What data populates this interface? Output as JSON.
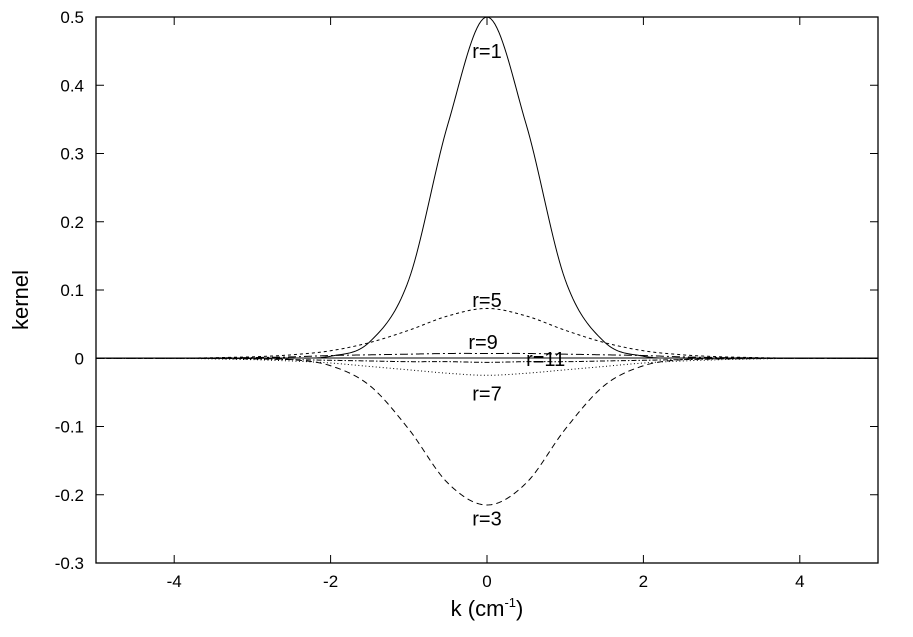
{
  "chart_data": {
    "type": "line",
    "title": "",
    "xlabel": "k (cm",
    "xlabel_sup": "-1",
    "xlabel_close": ")",
    "ylabel": "kernel",
    "xlim": [
      -5,
      5
    ],
    "ylim": [
      -0.3,
      0.5
    ],
    "xticks": [
      -4,
      -2,
      0,
      2,
      4
    ],
    "xtick_labels": [
      "-4",
      "-2",
      "0",
      "2",
      "4"
    ],
    "yticks": [
      -0.3,
      -0.2,
      -0.1,
      0,
      0.1,
      0.2,
      0.3,
      0.4,
      0.5
    ],
    "ytick_labels": [
      "-0.3",
      "-0.2",
      "-0.1",
      "0",
      "0.1",
      "0.2",
      "0.3",
      "0.4",
      "0.5"
    ],
    "grid": false,
    "legend": "none",
    "x": [
      -5,
      -4,
      -3,
      -2.5,
      -2,
      -1.5,
      -1,
      -0.5,
      0,
      0.5,
      1,
      1.5,
      2,
      2.5,
      3,
      4,
      5
    ],
    "series": [
      {
        "name": "r=1",
        "style": "solid",
        "label_at": [
          0,
          0.45
        ],
        "values": [
          0,
          0,
          0,
          0.0002,
          0.003,
          0.024,
          0.115,
          0.343,
          0.5,
          0.343,
          0.115,
          0.024,
          0.003,
          0.0002,
          0,
          0,
          0
        ]
      },
      {
        "name": "r=3",
        "style": "dashed",
        "label_at": [
          0,
          -0.235
        ],
        "values": [
          0,
          0,
          -0.0005,
          -0.002,
          -0.011,
          -0.04,
          -0.104,
          -0.183,
          -0.215,
          -0.183,
          -0.104,
          -0.04,
          -0.011,
          -0.002,
          -0.0005,
          0,
          0
        ]
      },
      {
        "name": "r=5",
        "style": "dashed-fine",
        "label_at": [
          0,
          0.085
        ],
        "values": [
          0,
          0,
          0.002,
          0.005,
          0.011,
          0.023,
          0.041,
          0.062,
          0.073,
          0.062,
          0.041,
          0.023,
          0.011,
          0.005,
          0.002,
          0,
          0
        ]
      },
      {
        "name": "r=7",
        "style": "dotted",
        "label_at": [
          0,
          -0.052
        ],
        "values": [
          0,
          0,
          -0.002,
          -0.004,
          -0.007,
          -0.012,
          -0.017,
          -0.022,
          -0.025,
          -0.022,
          -0.017,
          -0.012,
          -0.007,
          -0.004,
          -0.002,
          0,
          0
        ]
      },
      {
        "name": "r=9",
        "style": "dashdot",
        "label_at": [
          -0.05,
          0.024
        ],
        "values": [
          0,
          0,
          0.001,
          0.002,
          0.004,
          0.005,
          0.006,
          0.007,
          0.007,
          0.007,
          0.006,
          0.005,
          0.004,
          0.002,
          0.001,
          0,
          0
        ]
      },
      {
        "name": "r=11",
        "style": "dashdot-fine",
        "label_at": [
          0.75,
          -0.001
        ],
        "values": [
          0,
          0,
          -0.001,
          -0.002,
          -0.003,
          -0.004,
          -0.005,
          -0.005,
          -0.006,
          -0.005,
          -0.005,
          -0.004,
          -0.003,
          -0.002,
          -0.001,
          0,
          0
        ]
      }
    ]
  }
}
